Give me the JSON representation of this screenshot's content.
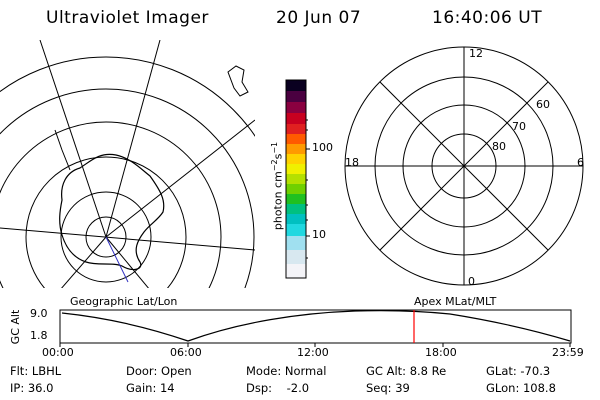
{
  "header": {
    "instrument": "Ultraviolet Imager",
    "date": "20 Jun 07",
    "time": "16:40:06 UT"
  },
  "colorbar": {
    "unit": "photon cm",
    "unit_exp1": "−2",
    "unit_mid": "s",
    "unit_exp2": "−1",
    "tick_100": "100",
    "tick_10": "10"
  },
  "polar": {
    "mlt_labels": [
      "12",
      "18",
      "6",
      "0"
    ],
    "lat_labels": [
      "60",
      "70",
      "80"
    ]
  },
  "map_labels": {
    "geographic": "Geographic Lat/Lon",
    "apex": "Apex MLat/MLT"
  },
  "altitude_plot": {
    "axis_label": "GC Alt",
    "y_ticks": [
      "9.0",
      "1.8"
    ],
    "x_ticks": [
      "00:00",
      "06:00",
      "12:00",
      "18:00",
      "23:59"
    ],
    "marker_color": "#ff0000"
  },
  "info": {
    "filter": "Flt: LBHL",
    "ip": "IP: 36.0",
    "door": "Door: Open",
    "gain": "Gain: 14",
    "mode": "Mode: Normal",
    "dsp": "Dsp:    -2.0",
    "gc_alt": "GC Alt: 8.8 Re",
    "seq": "Seq: 39",
    "glat": "GLat: -70.3",
    "glon": "GLon: 108.8"
  }
}
